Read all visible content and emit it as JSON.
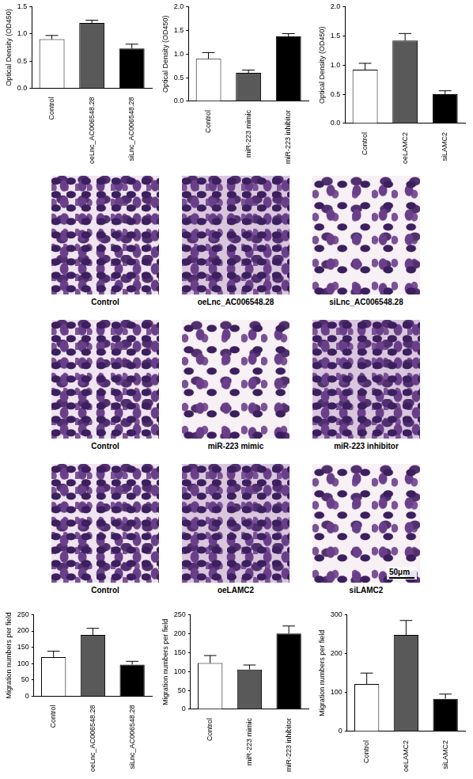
{
  "chart_data": [
    {
      "type": "bar",
      "categories": [
        "Control",
        "oeLnc_AC006548.28",
        "siLnc_AC006548.28"
      ],
      "values": [
        0.9,
        1.2,
        0.73
      ],
      "errors": [
        0.07,
        0.05,
        0.08
      ],
      "colors": [
        "#ffffff",
        "#595959",
        "#000000"
      ],
      "y_label": "Optical Density (OD450)",
      "ylim": [
        0,
        1.5
      ],
      "yticks": [
        {
          "value": 0,
          "label": "0.0"
        },
        0.5,
        {
          "value": 1,
          "label": "1.0"
        },
        1.5
      ],
      "grid": false
    },
    {
      "type": "bar",
      "categories": [
        "Control",
        "miR-223 mimic",
        "miR-223 inhibitor"
      ],
      "values": [
        0.9,
        0.6,
        1.37
      ],
      "errors": [
        0.13,
        0.06,
        0.06
      ],
      "colors": [
        "#ffffff",
        "#595959",
        "#000000"
      ],
      "y_label": "Optical Density (OD450)",
      "ylim": [
        0,
        2
      ],
      "yticks": [
        {
          "value": 0,
          "label": "0.0"
        },
        0.5,
        {
          "value": 1,
          "label": "1.0"
        },
        1.5,
        {
          "value": 2,
          "label": "2.0"
        }
      ],
      "grid": false
    },
    {
      "type": "bar",
      "categories": [
        "Control",
        "oeLAMC2",
        "siLAMC2"
      ],
      "values": [
        0.92,
        1.42,
        0.5
      ],
      "errors": [
        0.11,
        0.12,
        0.06
      ],
      "colors": [
        "#ffffff",
        "#595959",
        "#000000"
      ],
      "y_label": "Optical Density (OD450)",
      "ylim": [
        0,
        2
      ],
      "yticks": [
        {
          "value": 0,
          "label": "0.0"
        },
        0.5,
        {
          "value": 1,
          "label": "1.0"
        },
        1.5,
        {
          "value": 2,
          "label": "2.0"
        }
      ],
      "grid": false
    },
    {
      "type": "bar",
      "categories": [
        "Control",
        "oeLnc_AC006548.28",
        "siLnc_AC006548.28"
      ],
      "values": [
        120,
        188,
        97
      ],
      "errors": [
        18,
        20,
        10
      ],
      "colors": [
        "#ffffff",
        "#595959",
        "#000000"
      ],
      "y_label": "Migration numbers per field",
      "ylim": [
        0,
        250
      ],
      "yticks": [
        0,
        50,
        100,
        150,
        200,
        250
      ],
      "grid": false
    },
    {
      "type": "bar",
      "categories": [
        "Control",
        "miR-223 mimic",
        "miR-223 inhibitor"
      ],
      "values": [
        122,
        105,
        200
      ],
      "errors": [
        20,
        12,
        20
      ],
      "colors": [
        "#ffffff",
        "#595959",
        "#000000"
      ],
      "y_label": "Migration numbers per field",
      "ylim": [
        0,
        250
      ],
      "yticks": [
        0,
        50,
        100,
        150,
        200,
        250
      ],
      "grid": false
    },
    {
      "type": "bar",
      "categories": [
        "Control",
        "oeLAMC2",
        "siLAMC2"
      ],
      "values": [
        122,
        248,
        84
      ],
      "errors": [
        28,
        37,
        12
      ],
      "colors": [
        "#ffffff",
        "#595959",
        "#000000"
      ],
      "y_label": "Migration numbers per field",
      "ylim": [
        0,
        300
      ],
      "yticks": [
        0,
        100,
        200,
        300
      ],
      "grid": false
    }
  ],
  "micrographs": {
    "rows": [
      [
        "Control",
        "oeLnc_AC006548.28",
        "siLnc_AC006548.28"
      ],
      [
        "Control",
        "miR-223 mimic",
        "miR-223 inhibitor"
      ],
      [
        "Control",
        "oeLAMC2",
        "siLAMC2"
      ]
    ],
    "scale_bar": "50μm"
  }
}
